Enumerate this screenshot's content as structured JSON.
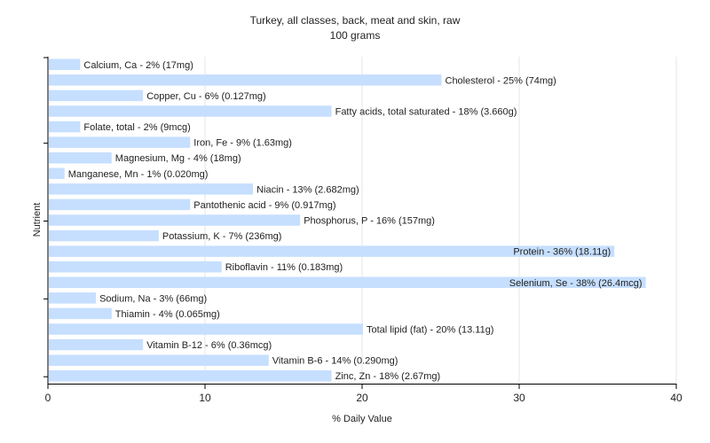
{
  "chart_data": {
    "type": "bar",
    "orientation": "horizontal",
    "title": "Turkey, all classes, back, meat and skin, raw",
    "subtitle": "100 grams",
    "xlabel": "% Daily Value",
    "ylabel": "Nutrient",
    "xlim": [
      0,
      40
    ],
    "xticks": [
      "0",
      "10",
      "20",
      "30",
      "40"
    ],
    "grid": true,
    "bar_color": "#c6dfff",
    "categories": [
      "Calcium, Ca",
      "Cholesterol",
      "Copper, Cu",
      "Fatty acids, total saturated",
      "Folate, total",
      "Iron, Fe",
      "Magnesium, Mg",
      "Manganese, Mn",
      "Niacin",
      "Pantothenic acid",
      "Phosphorus, P",
      "Potassium, K",
      "Protein",
      "Riboflavin",
      "Selenium, Se",
      "Sodium, Na",
      "Thiamin",
      "Total lipid (fat)",
      "Vitamin B-12",
      "Vitamin B-6",
      "Zinc, Zn"
    ],
    "values": [
      2,
      25,
      6,
      18,
      2,
      9,
      4,
      1,
      13,
      9,
      16,
      7,
      36,
      11,
      38,
      3,
      4,
      20,
      6,
      14,
      18
    ],
    "labels": [
      "Calcium, Ca - 2% (17mg)",
      "Cholesterol - 25% (74mg)",
      "Copper, Cu - 6% (0.127mg)",
      "Fatty acids, total saturated - 18% (3.660g)",
      "Folate, total - 2% (9mcg)",
      "Iron, Fe - 9% (1.63mg)",
      "Magnesium, Mg - 4% (18mg)",
      "Manganese, Mn - 1% (0.020mg)",
      "Niacin - 13% (2.682mg)",
      "Pantothenic acid - 9% (0.917mg)",
      "Phosphorus, P - 16% (157mg)",
      "Potassium, K - 7% (236mg)",
      "Protein - 36% (18.11g)",
      "Riboflavin - 11% (0.183mg)",
      "Selenium, Se - 38% (26.4mcg)",
      "Sodium, Na - 3% (66mg)",
      "Thiamin - 4% (0.065mg)",
      "Total lipid (fat) - 20% (13.11g)",
      "Vitamin B-12 - 6% (0.36mcg)",
      "Vitamin B-6 - 14% (0.290mg)",
      "Zinc, Zn - 18% (2.67mg)"
    ]
  }
}
